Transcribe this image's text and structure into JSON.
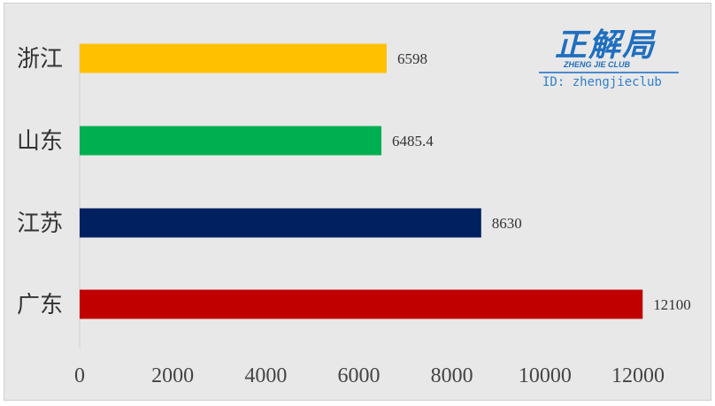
{
  "chart_data": {
    "type": "bar",
    "orientation": "horizontal",
    "categories": [
      "浙江",
      "山东",
      "江苏",
      "广东"
    ],
    "values": [
      6598,
      6485.4,
      8630,
      12100
    ],
    "value_labels": [
      "6598",
      "6485.4",
      "8630",
      "12100"
    ],
    "colors": [
      "#ffc000",
      "#00b050",
      "#002060",
      "#c00000"
    ],
    "xlim": [
      0,
      12000
    ],
    "x_ticks": [
      0,
      2000,
      4000,
      6000,
      8000,
      10000,
      12000
    ],
    "grid": false,
    "legend": "none"
  },
  "watermark": {
    "logo_text": "正解局",
    "subtitle": "ZHENG JIE CLUB",
    "id_text": "ID: zhengjieclub",
    "color": "#1f6fc0"
  },
  "background_color": "#e9e8e8"
}
